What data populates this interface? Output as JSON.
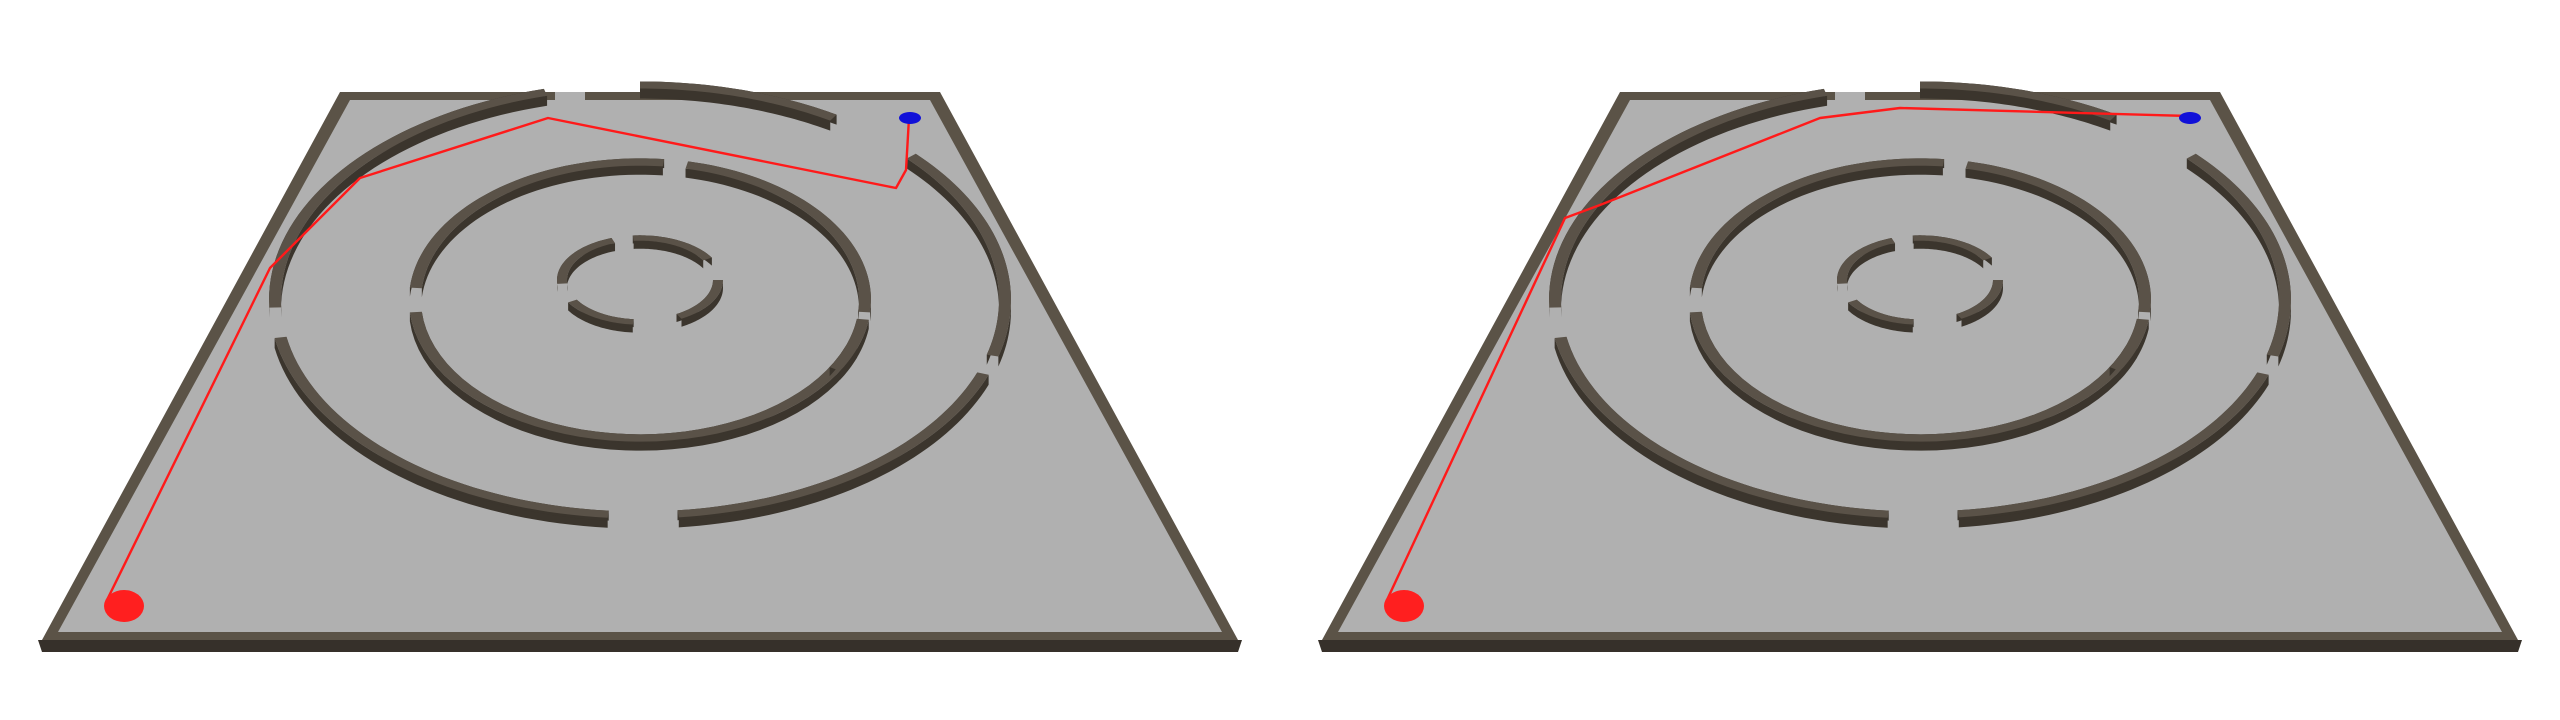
{
  "colors": {
    "background": "#ffffff",
    "floor": "#b0b0b0",
    "wall_top": "#5a5248",
    "wall_side": "#3b352d",
    "border_top": "#5b5347",
    "border_side": "#36302a",
    "path": "#ff1a1a",
    "start_marker": "#ff1f1f",
    "goal_marker": "#1010d8"
  },
  "views": [
    {
      "id": "left",
      "markers": {
        "start": "start",
        "goal": "goal"
      },
      "path_style": "solid"
    },
    {
      "id": "right",
      "markers": {
        "start": "start",
        "goal": "goal"
      },
      "path_style": "solid"
    }
  ]
}
